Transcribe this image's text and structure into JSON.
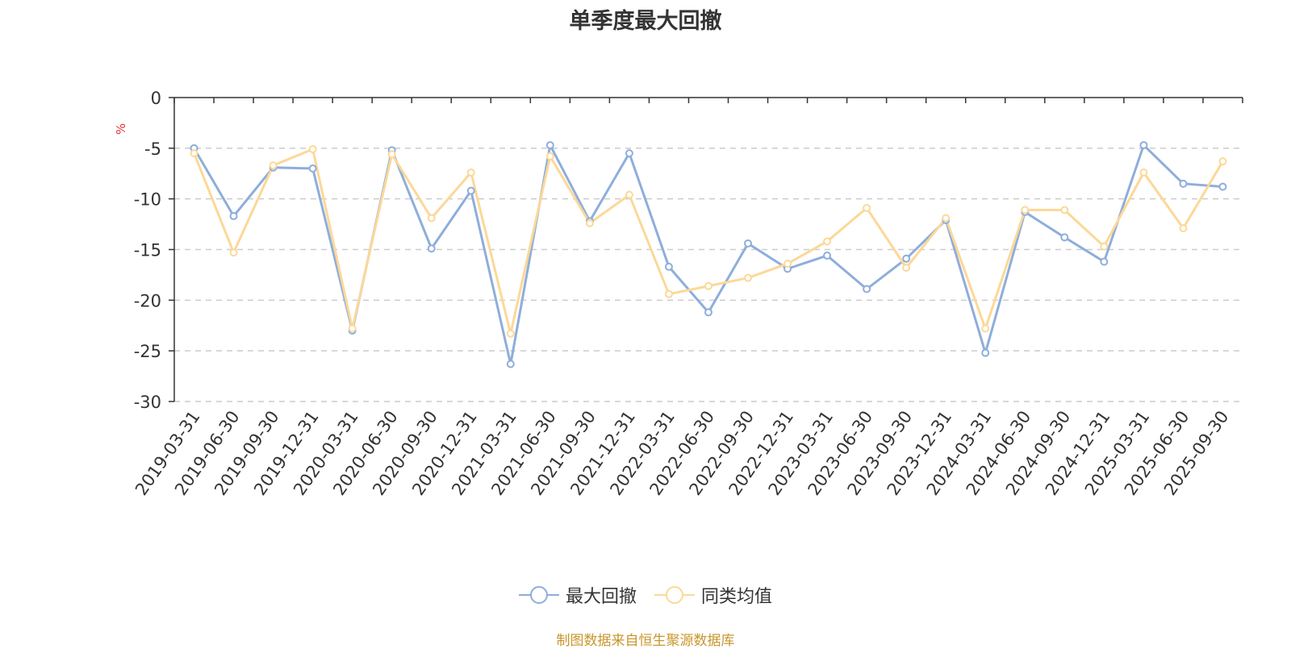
{
  "chart_data": {
    "type": "line",
    "title": "单季度最大回撤",
    "ylabel": "%",
    "xlabel": "",
    "ylim": [
      -30,
      0
    ],
    "yticks": [
      0,
      -5,
      -10,
      -15,
      -20,
      -25,
      -30
    ],
    "grid": true,
    "legend_position": "bottom-center",
    "categories": [
      "2019-03-31",
      "2019-06-30",
      "2019-09-30",
      "2019-12-31",
      "2020-03-31",
      "2020-06-30",
      "2020-09-30",
      "2020-12-31",
      "2021-03-31",
      "2021-06-30",
      "2021-09-30",
      "2021-12-31",
      "2022-03-31",
      "2022-06-30",
      "2022-09-30",
      "2022-12-31",
      "2023-03-31",
      "2023-06-30",
      "2023-09-30",
      "2023-12-31",
      "2024-03-31",
      "2024-06-30",
      "2024-09-30",
      "2024-12-31",
      "2025-03-31",
      "2025-06-30",
      "2025-09-30"
    ],
    "series": [
      {
        "name": "最大回撤",
        "color": "#8eaedb",
        "values": [
          -5.0,
          -11.7,
          -6.9,
          -7.0,
          -23.0,
          -5.2,
          -14.9,
          -9.2,
          -26.3,
          -4.7,
          -12.2,
          -5.5,
          -16.7,
          -21.2,
          -14.4,
          -16.9,
          -15.6,
          -18.9,
          -15.9,
          -12.1,
          -25.2,
          -11.3,
          -13.8,
          -16.2,
          -4.7,
          -8.5,
          -8.8
        ]
      },
      {
        "name": "同类均值",
        "color": "#fcd898",
        "values": [
          -5.5,
          -15.3,
          -6.7,
          -5.1,
          -22.8,
          -5.6,
          -11.9,
          -7.4,
          -23.3,
          -5.8,
          -12.4,
          -9.6,
          -19.4,
          -18.6,
          -17.8,
          -16.4,
          -14.2,
          -10.9,
          -16.8,
          -11.9,
          -22.8,
          -11.1,
          -11.1,
          -14.7,
          -7.4,
          -12.9,
          -6.3
        ]
      }
    ]
  },
  "footer": {
    "source": "制图数据来自恒生聚源数据库"
  }
}
